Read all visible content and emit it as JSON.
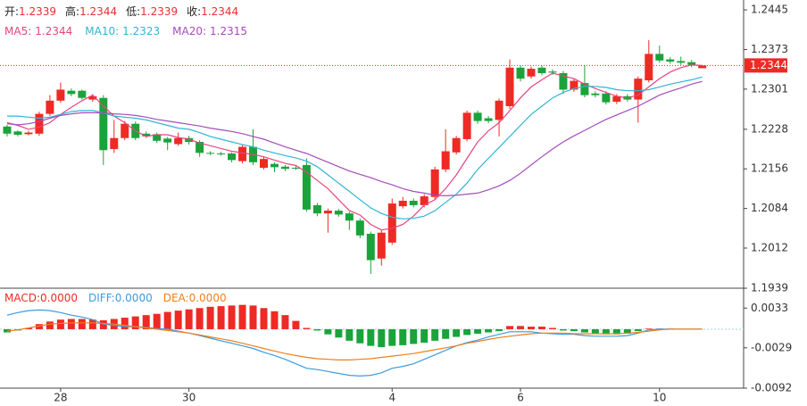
{
  "chart_data": [
    {
      "type": "candlestick",
      "categories": [
        null,
        null,
        null,
        null,
        null,
        "28",
        null,
        null,
        null,
        null,
        null,
        null,
        null,
        null,
        null,
        null,
        null,
        "30",
        null,
        null,
        null,
        null,
        null,
        null,
        null,
        null,
        null,
        null,
        null,
        null,
        null,
        null,
        null,
        null,
        null,
        null,
        "4",
        null,
        null,
        null,
        null,
        null,
        null,
        null,
        null,
        null,
        null,
        null,
        "6",
        null,
        null,
        null,
        null,
        null,
        null,
        null,
        null,
        null,
        null,
        null,
        null,
        "10",
        null,
        null,
        null,
        null
      ],
      "open": [
        1.2233,
        1.2224,
        1.2219,
        1.222,
        1.2256,
        1.228,
        1.2298,
        1.2298,
        1.2282,
        1.2285,
        1.2192,
        1.2212,
        1.2238,
        1.222,
        1.2219,
        1.2211,
        1.2201,
        1.2212,
        1.2205,
        1.2185,
        1.2184,
        1.2184,
        1.217,
        1.2196,
        1.2158,
        1.2165,
        1.216,
        1.2158,
        1.2163,
        1.209,
        1.2075,
        1.208,
        1.2075,
        1.2062,
        1.2038,
        1.1993,
        1.2022,
        1.2088,
        1.2098,
        1.209,
        1.2105,
        1.2155,
        1.2186,
        1.221,
        1.2258,
        1.2248,
        1.2245,
        1.227,
        1.234,
        1.2324,
        1.234,
        1.2333,
        1.233,
        1.23,
        1.2312,
        1.2293,
        1.2293,
        1.2278,
        1.2288,
        1.2282,
        1.2317,
        1.2365,
        1.2355,
        1.2352,
        1.235,
        1.2339
      ],
      "high": [
        1.2236,
        1.2226,
        1.2225,
        1.226,
        1.229,
        1.2313,
        1.2302,
        1.23,
        1.2292,
        1.229,
        1.2245,
        1.2243,
        1.2242,
        1.2224,
        1.2222,
        1.2214,
        1.2222,
        1.2216,
        1.2208,
        1.2188,
        1.2187,
        1.2186,
        1.22,
        1.2228,
        1.2178,
        1.2168,
        1.2163,
        1.2161,
        1.2175,
        1.2094,
        1.2084,
        1.2083,
        1.2078,
        1.2066,
        1.2042,
        1.2044,
        1.2102,
        1.2105,
        1.2102,
        1.211,
        1.216,
        1.2228,
        1.2216,
        1.2262,
        1.2262,
        1.2252,
        1.2284,
        1.2355,
        1.2344,
        1.2342,
        1.2344,
        1.2337,
        1.2334,
        1.232,
        1.2345,
        1.2297,
        1.2297,
        1.2292,
        1.2292,
        1.2324,
        1.239,
        1.238,
        1.2359,
        1.236,
        1.2354,
        1.2344
      ],
      "low": [
        1.2215,
        1.2215,
        1.2217,
        1.2216,
        1.2252,
        1.2276,
        1.2288,
        1.2282,
        1.2278,
        1.2163,
        1.2185,
        1.2208,
        1.2208,
        1.2212,
        1.2203,
        1.219,
        1.2198,
        1.22,
        1.2178,
        1.2181,
        1.218,
        1.2168,
        1.2166,
        1.2163,
        1.2155,
        1.215,
        1.2152,
        1.2154,
        1.2078,
        1.207,
        1.204,
        1.2069,
        1.2045,
        1.203,
        1.1965,
        1.198,
        1.2018,
        1.2084,
        1.2086,
        1.2086,
        1.21,
        1.215,
        1.2182,
        1.2206,
        1.2238,
        1.2239,
        1.2215,
        1.2265,
        1.2315,
        1.232,
        1.2326,
        1.2327,
        1.2292,
        1.2296,
        1.2286,
        1.2286,
        1.2273,
        1.2274,
        1.2278,
        1.224,
        1.2313,
        1.2349,
        1.2347,
        1.2345,
        1.2341,
        1.2339
      ],
      "close": [
        1.222,
        1.2218,
        1.2222,
        1.2256,
        1.228,
        1.23,
        1.2292,
        1.2285,
        1.2288,
        1.219,
        1.2212,
        1.2238,
        1.2212,
        1.2215,
        1.2207,
        1.2204,
        1.2212,
        1.2205,
        1.2185,
        1.2184,
        1.2183,
        1.2172,
        1.2196,
        1.2168,
        1.2174,
        1.2159,
        1.2156,
        1.2157,
        1.2082,
        1.2075,
        1.208,
        1.2073,
        1.2062,
        1.2035,
        1.199,
        1.204,
        1.2093,
        1.2098,
        1.209,
        1.2106,
        1.2155,
        1.2188,
        1.2212,
        1.2258,
        1.2243,
        1.2243,
        1.228,
        1.234,
        1.232,
        1.2338,
        1.233,
        1.2331,
        1.23,
        1.2316,
        1.229,
        1.229,
        1.2277,
        1.2288,
        1.2282,
        1.232,
        1.2365,
        1.2353,
        1.2351,
        1.2349,
        1.2345,
        1.2344
      ],
      "up_color": "#ee2a24",
      "down_color": "#1aa33a",
      "ylim": [
        1.1939,
        1.2463
      ],
      "yticks": [
        1.2445,
        1.2373,
        1.2301,
        1.2228,
        1.2156,
        1.2084,
        1.2012,
        1.1939
      ],
      "last_price": 1.2344,
      "last_price_color": "#ee2a24",
      "ohlc_legend": [
        {
          "label": "开:",
          "value": 1.2339
        },
        {
          "label": "高:",
          "value": 1.2344
        },
        {
          "label": "低:",
          "value": 1.2339
        },
        {
          "label": "收:",
          "value": 1.2344
        }
      ],
      "series": [
        {
          "name": "MA5:",
          "legend_value": 1.2344,
          "color": "#e6457d",
          "values": [
            1.224,
            1.2235,
            1.2228,
            1.2232,
            1.224,
            1.2255,
            1.2268,
            1.228,
            1.229,
            1.227,
            1.2252,
            1.224,
            1.2225,
            1.2215,
            1.2218,
            1.2218,
            1.2213,
            1.221,
            1.2203,
            1.2198,
            1.2193,
            1.2188,
            1.2185,
            1.2182,
            1.2178,
            1.2172,
            1.2166,
            1.2162,
            1.215,
            1.2135,
            1.212,
            1.21,
            1.208,
            1.2072,
            1.2055,
            1.2045,
            1.2048,
            1.2055,
            1.207,
            1.209,
            1.21,
            1.212,
            1.2145,
            1.2175,
            1.2205,
            1.2225,
            1.224,
            1.2262,
            1.2285,
            1.2305,
            1.2318,
            1.233,
            1.2325,
            1.232,
            1.231,
            1.2302,
            1.2295,
            1.2288,
            1.2285,
            1.229,
            1.2305,
            1.232,
            1.2332,
            1.234,
            1.2345,
            1.2344
          ]
        },
        {
          "name": "MA10:",
          "legend_value": 1.2323,
          "color": "#2fb5d4",
          "values": [
            1.2252,
            1.2252,
            1.225,
            1.2248,
            1.225,
            1.2255,
            1.226,
            1.2262,
            1.2262,
            1.2258,
            1.2252,
            1.225,
            1.2248,
            1.2245,
            1.224,
            1.2235,
            1.223,
            1.2228,
            1.2222,
            1.2215,
            1.221,
            1.2205,
            1.22,
            1.2196,
            1.219,
            1.2185,
            1.218,
            1.2176,
            1.217,
            1.216,
            1.2145,
            1.213,
            1.2115,
            1.21,
            1.2085,
            1.2075,
            1.2068,
            1.2065,
            1.2066,
            1.207,
            1.208,
            1.2095,
            1.211,
            1.213,
            1.2155,
            1.2175,
            1.2195,
            1.2215,
            1.2235,
            1.2255,
            1.227,
            1.2285,
            1.2295,
            1.2302,
            1.2306,
            1.2306,
            1.2304,
            1.23,
            1.2298,
            1.2298,
            1.23,
            1.2305,
            1.231,
            1.2314,
            1.2318,
            1.2323
          ]
        },
        {
          "name": "MA20:",
          "legend_value": 1.2315,
          "color": "#a44cbc",
          "values": [
            1.2238,
            1.2236,
            1.2238,
            1.2242,
            1.2248,
            1.2253,
            1.2256,
            1.2258,
            1.2258,
            1.2258,
            1.2256,
            1.2255,
            1.2253,
            1.225,
            1.2246,
            1.2243,
            1.224,
            1.2237,
            1.2234,
            1.223,
            1.2227,
            1.2224,
            1.222,
            1.2215,
            1.221,
            1.2203,
            1.2196,
            1.219,
            1.2184,
            1.2176,
            1.2168,
            1.216,
            1.2152,
            1.2146,
            1.214,
            1.2133,
            1.2127,
            1.212,
            1.2115,
            1.2112,
            1.2108,
            1.2107,
            1.2108,
            1.211,
            1.2112,
            1.2118,
            1.2125,
            1.2135,
            1.2148,
            1.2163,
            1.2178,
            1.2192,
            1.2205,
            1.2216,
            1.2226,
            1.2236,
            1.2246,
            1.2254,
            1.2262,
            1.227,
            1.228,
            1.229,
            1.2297,
            1.2303,
            1.231,
            1.2315
          ]
        }
      ]
    },
    {
      "type": "macd",
      "ylim": [
        -0.0092,
        0.0064
      ],
      "yticks": [
        0.0033,
        -0.0029,
        -0.0092
      ],
      "histogram": {
        "name": "MACD:",
        "legend_value": {
          "value": 0,
          "label": "0.0000"
        },
        "up_color": "#ee2a24",
        "down_color": "#1aa33a",
        "values": [
          -0.0005,
          -0.0002,
          0.0002,
          0.0008,
          0.0012,
          0.0015,
          0.0016,
          0.0016,
          0.0015,
          0.0014,
          0.0016,
          0.0018,
          0.002,
          0.0022,
          0.0024,
          0.0027,
          0.0029,
          0.0031,
          0.0033,
          0.0035,
          0.0036,
          0.0037,
          0.0038,
          0.0037,
          0.0033,
          0.0028,
          0.0022,
          0.0013,
          0.0002,
          -0.0002,
          -0.0008,
          -0.0013,
          -0.0018,
          -0.0022,
          -0.0026,
          -0.0028,
          -0.0026,
          -0.0025,
          -0.0023,
          -0.0021,
          -0.0018,
          -0.0015,
          -0.0012,
          -0.0009,
          -0.0007,
          -0.0005,
          -0.0003,
          0.0005,
          0.0005,
          0.0004,
          0.0004,
          0.0002,
          -0.0002,
          -0.0003,
          -0.0005,
          -0.0007,
          -0.0008,
          -0.0008,
          -0.0007,
          -0.0003,
          0.0001,
          0.0001,
          0.0001,
          0,
          0,
          0
        ]
      },
      "series": [
        {
          "name": "DIFF:",
          "legend_value": {
            "value": 0,
            "label": "0.0000"
          },
          "color": "#3b9be0",
          "values": [
            0.0022,
            0.0026,
            0.0029,
            0.003,
            0.0029,
            0.0026,
            0.0022,
            0.0019,
            0.0015,
            0.0008,
            0.0006,
            0.0004,
            0.0004,
            0.0003,
            0.0001,
            0,
            -0.0003,
            -0.0006,
            -0.001,
            -0.0014,
            -0.0018,
            -0.0022,
            -0.0026,
            -0.003,
            -0.0036,
            -0.0041,
            -0.0047,
            -0.0054,
            -0.0061,
            -0.0063,
            -0.0066,
            -0.0069,
            -0.0072,
            -0.0073,
            -0.0072,
            -0.0068,
            -0.0061,
            -0.0058,
            -0.0054,
            -0.0047,
            -0.004,
            -0.0033,
            -0.0026,
            -0.0021,
            -0.0017,
            -0.0012,
            -0.0008,
            -0.0004,
            -0.0004,
            -0.0004,
            -0.0006,
            -0.0007,
            -0.0008,
            -0.0008,
            -0.001,
            -0.0011,
            -0.0011,
            -0.0011,
            -0.001,
            -0.0006,
            -0.0001,
            0,
            0,
            0,
            0,
            0
          ]
        },
        {
          "name": "DEA:",
          "legend_value": {
            "value": 0,
            "label": "0.0000"
          },
          "color": "#f07f1d",
          "values": [
            -0.0003,
            -0.0001,
            0.0002,
            0.0005,
            0.0008,
            0.0009,
            0.001,
            0.001,
            0.001,
            0.0009,
            0.0008,
            0.0006,
            0.0004,
            0.0002,
            0,
            -0.0002,
            -0.0004,
            -0.0006,
            -0.0009,
            -0.0012,
            -0.0015,
            -0.0018,
            -0.0022,
            -0.0026,
            -0.003,
            -0.0034,
            -0.0038,
            -0.0041,
            -0.0044,
            -0.0046,
            -0.0047,
            -0.0048,
            -0.0048,
            -0.0047,
            -0.0046,
            -0.0044,
            -0.0042,
            -0.004,
            -0.0038,
            -0.0035,
            -0.0032,
            -0.0029,
            -0.0026,
            -0.0022,
            -0.0019,
            -0.0016,
            -0.0013,
            -0.0011,
            -0.0009,
            -0.0007,
            -0.0006,
            -0.0006,
            -0.0006,
            -0.0007,
            -0.0007,
            -0.0007,
            -0.0007,
            -0.0007,
            -0.0006,
            -0.0005,
            -0.0003,
            -0.0001,
            0,
            0,
            0,
            0
          ]
        }
      ]
    }
  ]
}
